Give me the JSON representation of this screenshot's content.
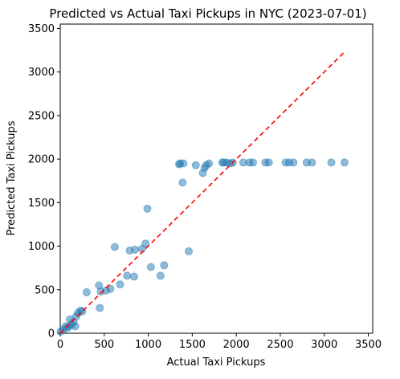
{
  "chart_data": {
    "type": "scatter",
    "title": "Predicted vs Actual Taxi Pickups in NYC (2023-07-01)",
    "xlabel": "Actual Taxi Pickups",
    "ylabel": "Predicted Taxi Pickups",
    "xlim": [
      0,
      3550
    ],
    "ylim": [
      0,
      3550
    ],
    "x_ticks": [
      0,
      500,
      1000,
      1500,
      2000,
      2500,
      3000,
      3500
    ],
    "y_ticks": [
      0,
      500,
      1000,
      1500,
      2000,
      2500,
      3000,
      3500
    ],
    "grid": false,
    "legend": "none",
    "series": [
      {
        "x": [
          5,
          30,
          60,
          80,
          110,
          100,
          130,
          150,
          170,
          180,
          200,
          230,
          250,
          300,
          440,
          450,
          460,
          520,
          570,
          620,
          680,
          760,
          790,
          840,
          850,
          930,
          970,
          990,
          1030,
          1140,
          1180,
          1350,
          1360,
          1390,
          1400,
          1460,
          1540,
          1620,
          1640,
          1660,
          1690,
          1840,
          1860,
          1890,
          1930,
          1960,
          2080,
          2150,
          2190,
          2330,
          2370,
          2560,
          2600,
          2650,
          2800,
          2860,
          3080,
          3230
        ],
        "y": [
          20,
          40,
          80,
          60,
          160,
          80,
          100,
          130,
          80,
          190,
          230,
          260,
          250,
          470,
          550,
          290,
          480,
          490,
          510,
          990,
          560,
          660,
          950,
          650,
          960,
          970,
          1030,
          1430,
          760,
          660,
          780,
          1940,
          1950,
          1730,
          1950,
          940,
          1930,
          1840,
          1900,
          1930,
          1950,
          1960,
          1960,
          1960,
          1950,
          1960,
          1960,
          1960,
          1960,
          1960,
          1960,
          1960,
          1960,
          1960,
          1960,
          1960,
          1960,
          1960
        ],
        "color": "#1f77b4",
        "opacity": 0.5
      }
    ],
    "reference_line": {
      "x": [
        0,
        3230
      ],
      "y": [
        0,
        3230
      ],
      "style": "dashed",
      "color": "#ff0000"
    }
  }
}
